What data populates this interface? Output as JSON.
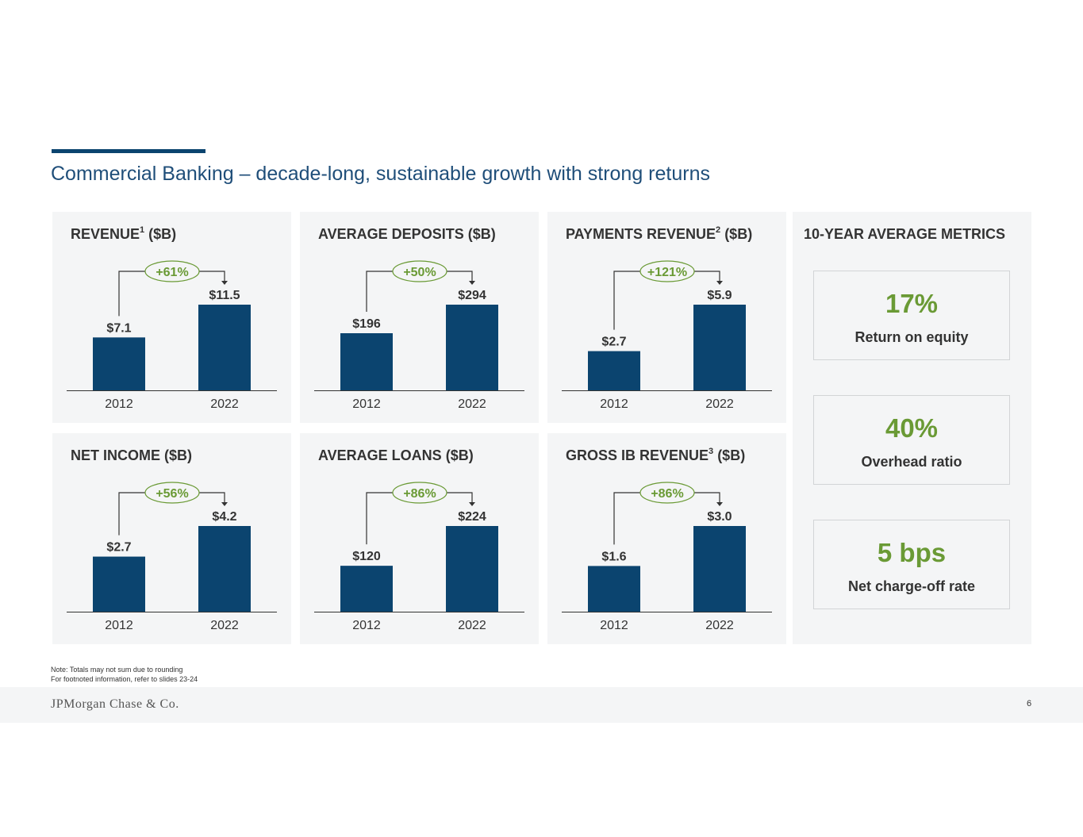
{
  "title": "Commercial Banking – decade-long, sustainable growth with strong returns",
  "colors": {
    "bar": "#0b446f",
    "growth": "#6a9a35",
    "accent": "#0b446f"
  },
  "chart_data": [
    {
      "type": "bar",
      "title": "REVENUE",
      "footnote": "1",
      "unit": "($B)",
      "categories": [
        "2012",
        "2022"
      ],
      "values": [
        7.1,
        11.5
      ],
      "labels": [
        "$7.1",
        "$11.5"
      ],
      "growth": "+61%"
    },
    {
      "type": "bar",
      "title": "AVERAGE DEPOSITS",
      "footnote": "",
      "unit": "($B)",
      "categories": [
        "2012",
        "2022"
      ],
      "values": [
        196,
        294
      ],
      "labels": [
        "$196",
        "$294"
      ],
      "growth": "+50%"
    },
    {
      "type": "bar",
      "title": "PAYMENTS REVENUE",
      "footnote": "2",
      "unit": "($B)",
      "categories": [
        "2012",
        "2022"
      ],
      "values": [
        2.7,
        5.9
      ],
      "labels": [
        "$2.7",
        "$5.9"
      ],
      "growth": "+121%"
    },
    {
      "type": "bar",
      "title": "NET INCOME",
      "footnote": "",
      "unit": "($B)",
      "categories": [
        "2012",
        "2022"
      ],
      "values": [
        2.7,
        4.2
      ],
      "labels": [
        "$2.7",
        "$4.2"
      ],
      "growth": "+56%"
    },
    {
      "type": "bar",
      "title": "AVERAGE LOANS",
      "footnote": "",
      "unit": "($B)",
      "categories": [
        "2012",
        "2022"
      ],
      "values": [
        120,
        224
      ],
      "labels": [
        "$120",
        "$224"
      ],
      "growth": "+86%"
    },
    {
      "type": "bar",
      "title": "GROSS IB REVENUE",
      "footnote": "3",
      "unit": "($B)",
      "categories": [
        "2012",
        "2022"
      ],
      "values": [
        1.6,
        3.0
      ],
      "labels": [
        "$1.6",
        "$3.0"
      ],
      "growth": "+86%"
    }
  ],
  "metrics": {
    "title": "10-YEAR AVERAGE METRICS",
    "items": [
      {
        "value": "17%",
        "label": "Return on equity"
      },
      {
        "value": "40%",
        "label": "Overhead ratio"
      },
      {
        "value": "5 bps",
        "label": "Net charge-off rate"
      }
    ]
  },
  "note": {
    "line1": "Note: Totals may not sum due to rounding",
    "line2": "For footnoted information, refer to slides 23-24"
  },
  "footer": {
    "logo": "JPMorgan Chase & Co.",
    "page": "6"
  }
}
